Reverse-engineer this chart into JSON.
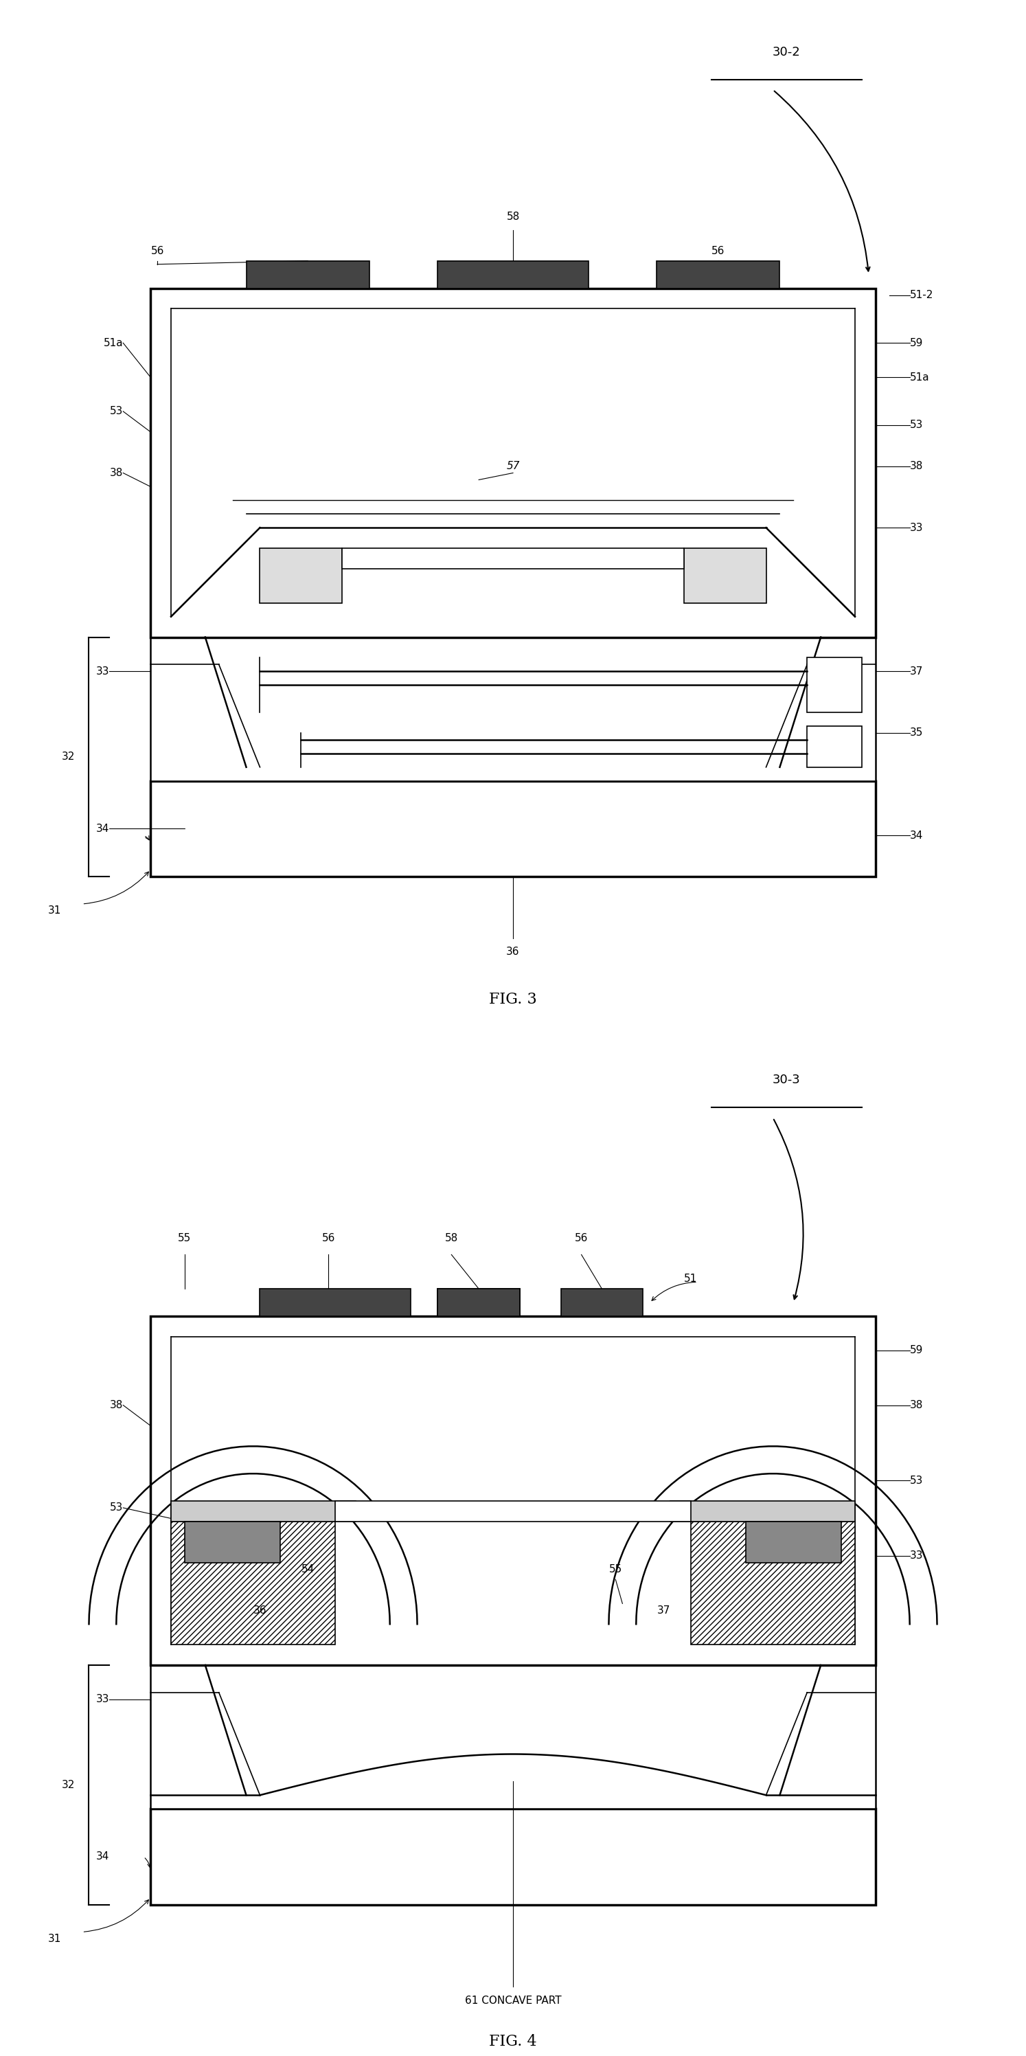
{
  "fig_width": 14.94,
  "fig_height": 29.93,
  "bg_color": "#ffffff",
  "lc": "#000000",
  "fig3_label": "FIG. 3",
  "fig4_label": "FIG. 4",
  "ref_30_2": "30-2",
  "ref_30_3": "30-3",
  "ref_51_2": "51-2",
  "refs_fig3_left": [
    "51a",
    "53",
    "38",
    "33",
    "32",
    "34",
    "31"
  ],
  "refs_fig3_right": [
    "59",
    "51a",
    "53",
    "38",
    "33",
    "37",
    "35",
    "34"
  ],
  "refs_fig3_top": [
    "56",
    "58",
    "56"
  ],
  "refs_fig3_inner": [
    "57",
    "36"
  ],
  "refs_fig4_top": [
    "55",
    "56",
    "58",
    "56",
    "51"
  ],
  "refs_fig4_left": [
    "38",
    "53",
    "33",
    "32",
    "34",
    "31"
  ],
  "refs_fig4_right": [
    "59",
    "38",
    "53",
    "33"
  ],
  "refs_fig4_inner": [
    "54",
    "36",
    "55",
    "37"
  ],
  "note_61": "61 CONCAVE PART"
}
